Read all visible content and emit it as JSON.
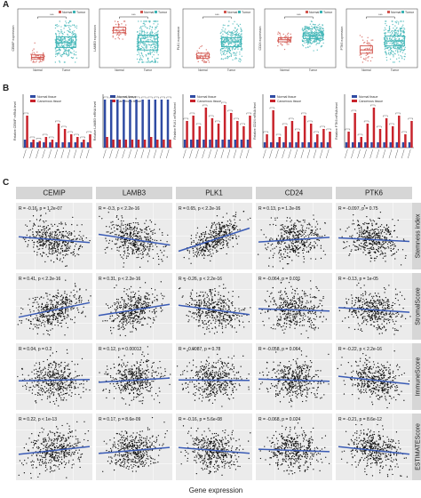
{
  "panel_labels": {
    "a": "A",
    "b": "B",
    "c": "C"
  },
  "colors": {
    "normal": "#d2554e",
    "tumor": "#3bb3b4",
    "normal_tissue": "#2f4ba3",
    "cancerous_tissue": "#c8232b",
    "strip": "#d6d6d6",
    "grid_bg": "#ebebeb",
    "points": "#111111",
    "fit": "#3a5bb5"
  },
  "x_axis_title": "Gene expression",
  "chart_data": [
    {
      "panel": "A",
      "type": "box",
      "legend": [
        "Normal",
        "Tumor"
      ],
      "genes": [
        {
          "gene": "CEMIP",
          "ylabel": "CEMIP expression",
          "significance": "***",
          "categories": [
            "Normal",
            "Tumor"
          ],
          "medians": [
            0.12,
            0.48
          ],
          "q1": [
            0.08,
            0.36
          ],
          "q3": [
            0.18,
            0.62
          ]
        },
        {
          "gene": "LAMB3",
          "ylabel": "LAMB3 expression",
          "significance": "***",
          "categories": [
            "Normal",
            "Tumor"
          ],
          "medians": [
            0.78,
            0.5
          ],
          "q1": [
            0.72,
            0.3
          ],
          "q3": [
            0.86,
            0.66
          ]
        },
        {
          "gene": "PLK1",
          "ylabel": "PLK1 expression",
          "significance": "***",
          "categories": [
            "Normal",
            "Tumor"
          ],
          "medians": [
            0.15,
            0.5
          ],
          "q1": [
            0.1,
            0.38
          ],
          "q3": [
            0.22,
            0.6
          ]
        },
        {
          "gene": "CD24",
          "ylabel": "CD24 expression",
          "significance": "***",
          "categories": [
            "Normal",
            "Tumor"
          ],
          "medians": [
            0.55,
            0.65
          ],
          "q1": [
            0.5,
            0.58
          ],
          "q3": [
            0.6,
            0.72
          ]
        },
        {
          "gene": "PTK6",
          "ylabel": "PTK6 expression",
          "significance": "***",
          "categories": [
            "Normal",
            "Tumor"
          ],
          "medians": [
            0.3,
            0.52
          ],
          "q1": [
            0.22,
            0.4
          ],
          "q3": [
            0.4,
            0.64
          ]
        }
      ]
    },
    {
      "panel": "B",
      "type": "bar",
      "legend": [
        "Normal tissue",
        "Cancerous tissue"
      ],
      "genes": [
        {
          "gene": "CEMIP",
          "ylabel": "Relative CEMIP mRNA level",
          "normal": [
            0.3,
            0.2,
            0.2,
            0.2,
            0.2,
            0.2,
            0.2,
            0.2,
            0.2,
            0.2,
            0.2
          ],
          "cancer": [
            1.2,
            0.3,
            0.25,
            0.4,
            0.3,
            0.9,
            0.7,
            0.5,
            0.4,
            0.3,
            0.5
          ]
        },
        {
          "gene": "LAMB3",
          "ylabel": "Relative LAMB3 mRNA level",
          "normal": [
            1.8,
            1.8,
            1.8,
            1.8,
            1.8,
            1.8,
            1.8,
            1.8,
            1.8,
            1.8,
            1.8
          ],
          "cancer": [
            0.4,
            0.3,
            0.3,
            0.3,
            0.3,
            0.3,
            0.3,
            0.4,
            0.3,
            0.3,
            0.3
          ]
        },
        {
          "gene": "PLK1",
          "ylabel": "Relative PLK1 mRNA level",
          "normal": [
            0.3,
            0.3,
            0.3,
            0.3,
            0.3,
            0.3,
            0.3,
            0.3,
            0.3,
            0.3,
            0.3
          ],
          "cancer": [
            1.0,
            1.2,
            0.8,
            1.5,
            1.1,
            0.9,
            1.6,
            1.3,
            1.0,
            0.8,
            1.2
          ]
        },
        {
          "gene": "CD24",
          "ylabel": "Relative CD24 mRNA level",
          "normal": [
            0.2,
            0.2,
            0.2,
            0.2,
            0.2,
            0.2,
            0.2,
            0.2,
            0.2,
            0.2,
            0.2
          ],
          "cancer": [
            0.5,
            1.4,
            0.4,
            0.8,
            1.0,
            0.6,
            1.2,
            0.9,
            0.5,
            0.7,
            0.6
          ]
        },
        {
          "gene": "PTK6",
          "ylabel": "Relative PTK6 mRNA level",
          "normal": [
            0.2,
            0.2,
            0.2,
            0.2,
            0.2,
            0.2,
            0.2,
            0.2,
            0.2,
            0.2,
            0.2
          ],
          "cancer": [
            0.6,
            1.3,
            0.4,
            0.9,
            1.5,
            0.7,
            1.1,
            0.8,
            1.2,
            0.5,
            1.0
          ]
        }
      ]
    },
    {
      "panel": "C",
      "type": "scatter",
      "columns": [
        "CEMIP",
        "LAMB3",
        "PLK1",
        "CD24",
        "PTK6"
      ],
      "rows": [
        "Stemness index",
        "StromalScore",
        "ImmuneScore",
        "ESTIMATEScore"
      ],
      "xlabel": "Gene expression",
      "stats": [
        [
          "R = -0.16, p = 1.2e-07",
          "R = -0.3, p < 2.2e-16",
          "R = 0.65, p < 2.2e-16",
          "R = 0.13, p = 1.2e-05",
          "R = -0.097, p = 0.75"
        ],
        [
          "R = 0.41, p < 2.2e-16",
          "R = 0.31, p < 2.2e-16",
          "R = -0.26, p < 2.2e-16",
          "R = -0.064, p = 0.031",
          "R = -0.13, p = 1e-05"
        ],
        [
          "R = 0.04, p = 0.2",
          "R = 0.12, p = 0.00012",
          "R = -0.0087, p = 0.78",
          "R = -0.058, p = 0.064",
          "R = -0.22, p < 2.2e-16"
        ],
        [
          "R = 0.22, p < 1e-13",
          "R = 0.17, p = 8.6e-09",
          "R = -0.16, p = 5.6e-08",
          "R = -0.068, p = 0.024",
          "R = -0.21, p = 8.6e-12"
        ]
      ],
      "slopes": [
        [
          -0.16,
          -0.3,
          0.65,
          0.13,
          -0.1
        ],
        [
          0.41,
          0.31,
          -0.26,
          -0.06,
          -0.13
        ],
        [
          0.04,
          0.12,
          -0.01,
          -0.06,
          -0.22
        ],
        [
          0.22,
          0.17,
          -0.16,
          -0.07,
          -0.21
        ]
      ]
    }
  ]
}
